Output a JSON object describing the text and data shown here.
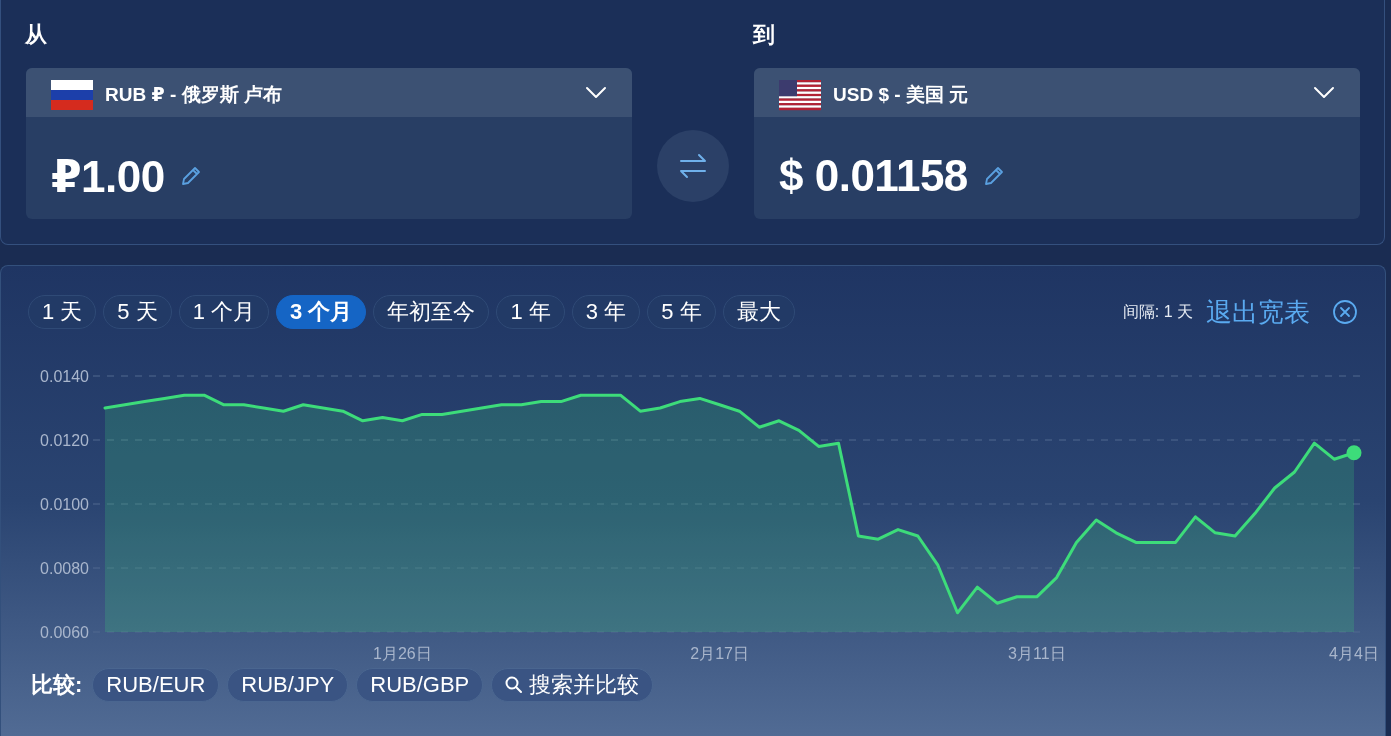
{
  "chart_data": [
    {
      "type": "other",
      "annotations": [
        "从",
        "RUB ₽ - 俄罗斯 卢布",
        "₽1.00",
        "到",
        "USD $ - 美国 元",
        "$ 0.01158"
      ]
    },
    {
      "type": "area",
      "categories": [
        null,
        null,
        null,
        null,
        null,
        null,
        null,
        null,
        null,
        null,
        null,
        null,
        null,
        null,
        null,
        "1月26日",
        null,
        null,
        null,
        null,
        null,
        null,
        null,
        null,
        null,
        null,
        null,
        null,
        null,
        null,
        null,
        "2月17日",
        null,
        null,
        null,
        null,
        null,
        null,
        null,
        null,
        null,
        null,
        null,
        null,
        null,
        null,
        null,
        "3月11日",
        null,
        null,
        null,
        null,
        null,
        null,
        null,
        null,
        null,
        null,
        null,
        null,
        null,
        null,
        null,
        "4月4日"
      ],
      "series": [
        {
          "color": "#3ddc7a",
          "values": [
            0.013,
            0.0131,
            0.0132,
            0.0133,
            0.0134,
            0.0134,
            0.0131,
            0.0131,
            0.013,
            0.0129,
            0.0131,
            0.013,
            0.0129,
            0.0126,
            0.0127,
            0.0126,
            0.0128,
            0.0128,
            0.0129,
            0.013,
            0.0131,
            0.0131,
            0.0132,
            0.0132,
            0.0134,
            0.0134,
            0.0134,
            0.0129,
            0.013,
            0.0132,
            0.0133,
            0.0131,
            0.0129,
            0.0124,
            0.0126,
            0.0123,
            0.0118,
            0.0119,
            0.009,
            0.0089,
            0.0092,
            0.009,
            0.0081,
            0.0066,
            0.0074,
            0.0069,
            0.0071,
            0.0071,
            0.0077,
            0.0088,
            0.0095,
            0.0091,
            0.0088,
            0.0088,
            0.0088,
            0.0096,
            0.0091,
            0.009,
            0.0097,
            0.0105,
            0.011,
            0.0119,
            0.0114,
            0.0116
          ]
        },
        {
          "type": "scatter",
          "color": "#3ddc7a",
          "marker": "circle",
          "values": [
            null,
            null,
            null,
            null,
            null,
            null,
            null,
            null,
            null,
            null,
            null,
            null,
            null,
            null,
            null,
            null,
            null,
            null,
            null,
            null,
            null,
            null,
            null,
            null,
            null,
            null,
            null,
            null,
            null,
            null,
            null,
            null,
            null,
            null,
            null,
            null,
            null,
            null,
            null,
            null,
            null,
            null,
            null,
            null,
            null,
            null,
            null,
            null,
            null,
            null,
            null,
            null,
            null,
            null,
            null,
            null,
            null,
            null,
            null,
            null,
            null,
            null,
            null,
            0.0116
          ]
        }
      ],
      "ylim": [
        0.006,
        0.014
      ],
      "yticks": [
        {
          "value": 0.006,
          "label": "0.0060"
        },
        {
          "value": 0.008,
          "label": "0.0080"
        },
        {
          "value": 0.01,
          "label": "0.0100"
        },
        {
          "value": 0.012,
          "label": "0.0120"
        },
        {
          "value": 0.014,
          "label": "0.0140"
        }
      ],
      "grid": "y",
      "annotations": [
        "1 天",
        "5 天",
        "1 个月",
        "3 个月",
        "年初至今",
        "1 年",
        "3 年",
        "5 年",
        "最大",
        "间隔: 1 天",
        "退出宽表",
        "比较:",
        "RUB/EUR",
        "RUB/JPY",
        "RUB/GBP",
        "搜索并比较"
      ]
    }
  ]
}
